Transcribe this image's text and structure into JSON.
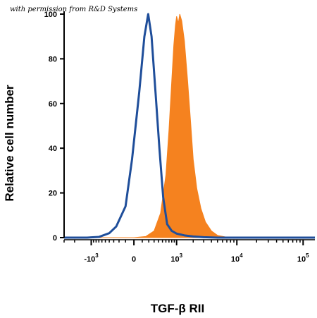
{
  "watermark": "with permission from R&D Systems",
  "colors": {
    "filled": "#F5821F",
    "control": "#1F4E9A",
    "axis": "#000000"
  },
  "chart_data": {
    "type": "area",
    "title": "",
    "xlabel": "TGF-β RII",
    "ylabel": "Relative cell number",
    "x_scale": "logicle",
    "ylim": [
      0,
      100
    ],
    "yticks": [
      0,
      20,
      40,
      60,
      80,
      100
    ],
    "xticks": [
      {
        "value": -1000,
        "base": "-10",
        "exp": "3"
      },
      {
        "value": 0,
        "base": "0",
        "exp": ""
      },
      {
        "value": 1000,
        "base": "10",
        "exp": "3"
      },
      {
        "value": 10000,
        "base": "10",
        "exp": "4"
      },
      {
        "value": 100000,
        "base": "10",
        "exp": "5"
      }
    ],
    "series": [
      {
        "kind": "filled",
        "points": [
          [
            -3000,
            0
          ],
          [
            0,
            0
          ],
          [
            150,
            0.5
          ],
          [
            300,
            3
          ],
          [
            450,
            11
          ],
          [
            600,
            28
          ],
          [
            700,
            48
          ],
          [
            800,
            70
          ],
          [
            880,
            86
          ],
          [
            950,
            95
          ],
          [
            1000,
            99
          ],
          [
            1080,
            96
          ],
          [
            1150,
            100
          ],
          [
            1250,
            97
          ],
          [
            1400,
            88
          ],
          [
            1600,
            70
          ],
          [
            1800,
            52
          ],
          [
            2000,
            35
          ],
          [
            2300,
            22
          ],
          [
            2700,
            13
          ],
          [
            3200,
            7
          ],
          [
            4000,
            3
          ],
          [
            5000,
            1
          ],
          [
            7000,
            0.2
          ],
          [
            10000,
            0
          ],
          [
            150000,
            0
          ]
        ]
      },
      {
        "kind": "control",
        "points": [
          [
            -3000,
            0
          ],
          [
            -1200,
            0
          ],
          [
            -700,
            0.3
          ],
          [
            -400,
            2
          ],
          [
            -250,
            5
          ],
          [
            -100,
            14
          ],
          [
            -20,
            35
          ],
          [
            60,
            65
          ],
          [
            130,
            90
          ],
          [
            190,
            100
          ],
          [
            250,
            90
          ],
          [
            330,
            65
          ],
          [
            420,
            40
          ],
          [
            520,
            18
          ],
          [
            640,
            6
          ],
          [
            800,
            3
          ],
          [
            1000,
            1.8
          ],
          [
            1400,
            1
          ],
          [
            2000,
            0.5
          ],
          [
            3000,
            0.2
          ],
          [
            5000,
            0
          ],
          [
            150000,
            0
          ]
        ]
      }
    ]
  }
}
